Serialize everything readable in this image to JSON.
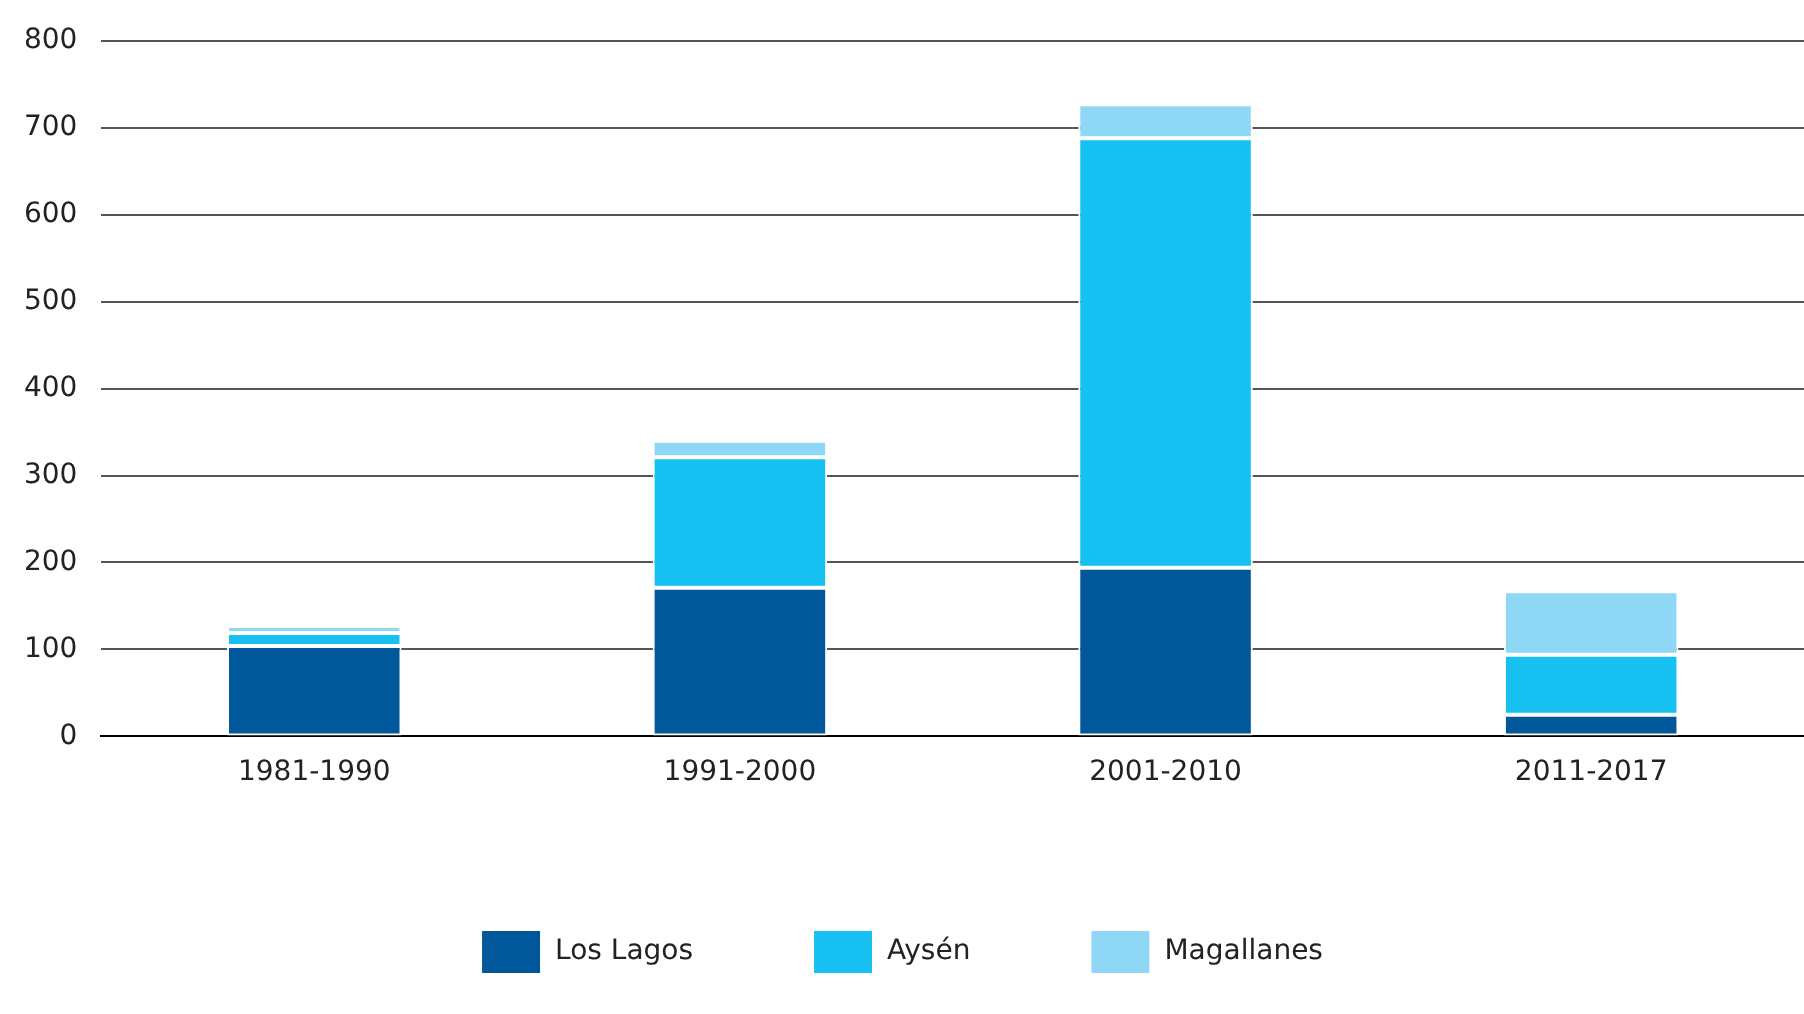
{
  "chart_data": {
    "type": "bar",
    "stacked": true,
    "categories": [
      "1981-1990",
      "1991-2000",
      "2001-2010",
      "2011-2017"
    ],
    "series": [
      {
        "name": "Los Lagos",
        "color": "#00589b",
        "values": [
          104,
          171,
          194,
          25
        ]
      },
      {
        "name": "Aysén",
        "color": "#16c0f0",
        "values": [
          15,
          150,
          494,
          69
        ]
      },
      {
        "name": "Magallanes",
        "color": "#8fd8f5",
        "values": [
          8,
          19,
          39,
          73
        ]
      }
    ],
    "ylim": [
      0,
      800
    ],
    "yticks": [
      0,
      100,
      200,
      300,
      400,
      500,
      600,
      700,
      800
    ],
    "grid": "y",
    "legend": "bottom"
  }
}
